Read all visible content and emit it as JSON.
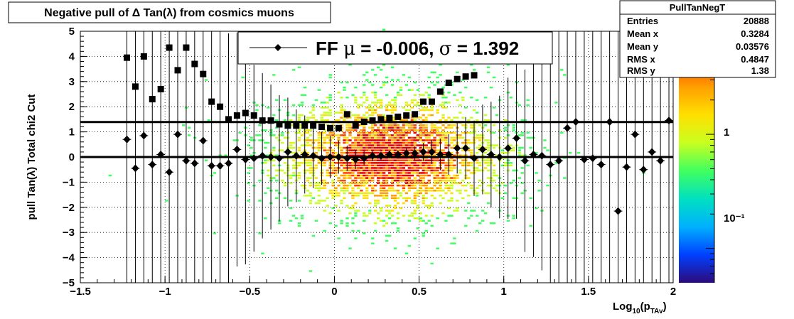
{
  "chart_data": {
    "type": "scatter",
    "title": "Negative pull of Δ Tan(λ) from cosmics muons",
    "xlabel_main": "Log",
    "xlabel_sub1": "10",
    "xlabel_paren_open": "(p",
    "xlabel_sub2": "TAv",
    "xlabel_paren_close": ")",
    "ylabel": "pull Tan(λ)  Total chi2 Cut",
    "xlim": [
      -1.5,
      2.0
    ],
    "ylim": [
      -5,
      5
    ],
    "x_ticks": [
      -1.5,
      -1,
      -0.5,
      0,
      0.5,
      1,
      1.5,
      2
    ],
    "x_tick_labels": [
      "−1.5",
      "−1",
      "−0.5",
      "0",
      "0.5",
      "1",
      "1.5",
      "2"
    ],
    "y_ticks": [
      -5,
      -4,
      -3,
      -2,
      -1,
      0,
      1,
      2,
      3,
      4,
      5
    ],
    "y_tick_labels": [
      "−5",
      "−4",
      "−3",
      "−2",
      "−1",
      "0",
      "1",
      "2",
      "3",
      "4",
      "5"
    ],
    "grid": true,
    "legend": {
      "position": "top",
      "label_prefix": "FF ",
      "mu_symbol": "μ",
      "mu_text": " = -0.006, ",
      "sigma_symbol": "σ",
      "sigma_text": " =   1.392"
    },
    "mean_line_y": 0.0,
    "sigma_line_y": 1.392,
    "colorbar": {
      "scale": "log",
      "tick_labels": [
        "1",
        "10⁻¹"
      ],
      "tick_values": [
        1,
        0.1
      ],
      "range": [
        0.05,
        8
      ],
      "colors": [
        "#2d0a7a",
        "#0040ff",
        "#00b0ff",
        "#00e0c0",
        "#40ff60",
        "#c8ff20",
        "#ffe000",
        "#ffa000",
        "#ff4000",
        "#e00000"
      ]
    },
    "stats": {
      "title": "PullTanNegT",
      "rows": [
        {
          "label": "Entries",
          "value": "20888"
        },
        {
          "label": "Mean x",
          "value": "0.3284"
        },
        {
          "label": "Mean y",
          "value": "0.03576"
        },
        {
          "label": "RMS x",
          "value": "0.4847"
        },
        {
          "label": "RMS y",
          "value": "1.38"
        }
      ]
    },
    "series": [
      {
        "marker": "diamond",
        "x": [
          -1.225,
          -1.175,
          -1.125,
          -1.075,
          -1.025,
          -0.975,
          -0.925,
          -0.875,
          -0.825,
          -0.775,
          -0.725,
          -0.675,
          -0.625,
          -0.575,
          -0.525,
          -0.475,
          -0.425,
          -0.375,
          -0.325,
          -0.275,
          -0.225,
          -0.175,
          -0.125,
          -0.075,
          -0.025,
          0.025,
          0.075,
          0.125,
          0.175,
          0.225,
          0.275,
          0.325,
          0.375,
          0.425,
          0.475,
          0.525,
          0.575,
          0.625,
          0.675,
          0.725,
          0.775,
          0.825,
          0.875,
          0.925,
          0.975,
          1.025,
          1.075,
          1.125,
          1.175,
          1.225,
          1.275,
          1.325,
          1.375,
          1.425,
          1.475,
          1.525,
          1.575,
          1.625,
          1.675,
          1.725,
          1.775,
          1.825,
          1.875,
          1.925,
          1.975
        ],
        "y": [
          0.7,
          -0.45,
          0.85,
          -0.3,
          0.1,
          -0.6,
          0.9,
          -0.15,
          -0.25,
          0.65,
          -0.35,
          -0.35,
          -0.25,
          0.3,
          -0.1,
          -0.05,
          0.05,
          0.0,
          -0.05,
          0.2,
          0.05,
          0.1,
          0.05,
          -0.05,
          0.0,
          0.0,
          -0.05,
          -0.1,
          -0.05,
          0.05,
          0.05,
          0.1,
          0.1,
          0.15,
          0.15,
          0.2,
          0.2,
          0.1,
          0.1,
          0.35,
          0.35,
          -0.05,
          0.3,
          0.1,
          0.0,
          0.35,
          0.75,
          -0.15,
          0.1,
          0.05,
          -0.3,
          -0.15,
          1.15,
          1.4,
          -0.1,
          -0.05,
          -0.3,
          1.4,
          -2.15,
          -0.4,
          0.9,
          -0.5,
          0.2,
          -0.15,
          1.45
        ]
      },
      {
        "marker": "square",
        "x": [
          -1.225,
          -1.175,
          -1.125,
          -1.075,
          -1.025,
          -0.975,
          -0.925,
          -0.875,
          -0.825,
          -0.775,
          -0.725,
          -0.675,
          -0.625,
          -0.575,
          -0.525,
          -0.475,
          -0.425,
          -0.375,
          -0.325,
          -0.275,
          -0.225,
          -0.175,
          -0.125,
          -0.075,
          -0.025,
          0.025,
          0.075,
          0.125,
          0.175,
          0.225,
          0.275,
          0.325,
          0.375,
          0.425,
          0.475,
          0.525,
          0.575,
          0.625,
          0.675,
          0.725,
          0.775,
          0.825
        ],
        "y": [
          3.95,
          2.8,
          4.0,
          2.3,
          2.7,
          4.35,
          3.45,
          4.35,
          3.7,
          3.3,
          2.2,
          2.0,
          1.5,
          1.65,
          1.75,
          1.65,
          1.45,
          1.45,
          1.3,
          1.25,
          1.25,
          1.25,
          1.25,
          1.2,
          1.15,
          1.15,
          1.7,
          1.25,
          1.4,
          1.45,
          1.5,
          1.55,
          1.6,
          1.65,
          1.7,
          2.2,
          2.2,
          2.6,
          2.95,
          3.1,
          3.2,
          3.25
        ]
      }
    ]
  }
}
